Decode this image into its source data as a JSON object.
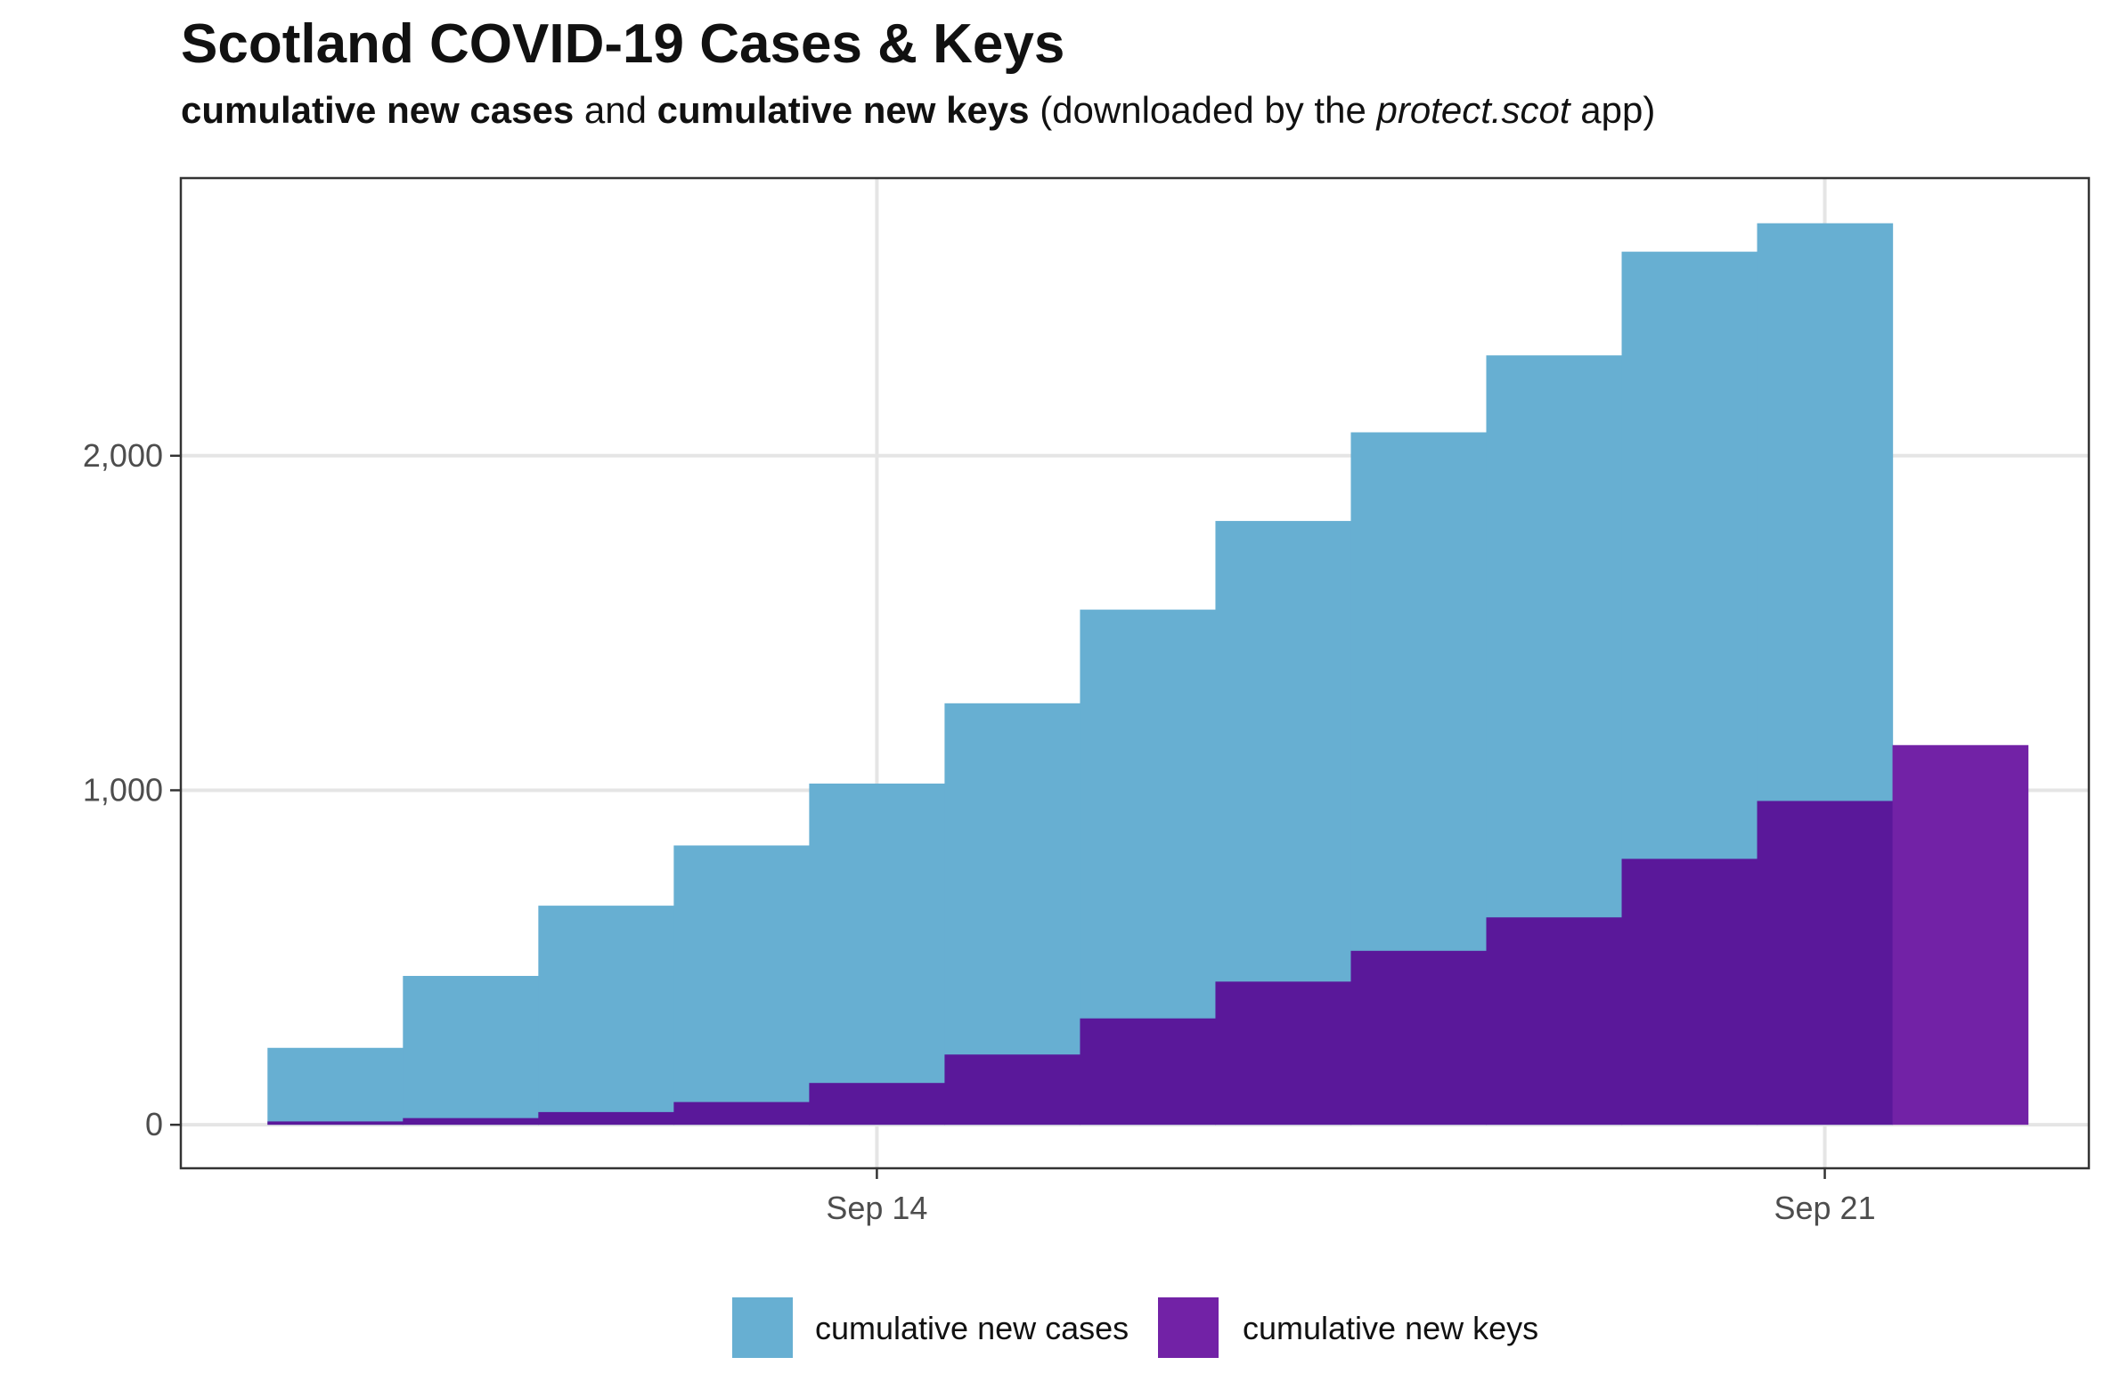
{
  "colors": {
    "cases": "#67afd2",
    "keys": "#5a189a",
    "keys_extra": "#7222a6",
    "grid": "#e5e5e5",
    "axis_text": "#4d4d4d",
    "panel_border": "#333333"
  },
  "chart_data": {
    "type": "area",
    "title": "Scotland COVID-19 Cases & Keys",
    "subtitle": {
      "part1": "cumulative new cases",
      "part2": " and ",
      "part3": "cumulative new keys",
      "part4": " (downloaded by the ",
      "part5": "protect.scot",
      "part6": "  app)"
    },
    "xlabel": "",
    "ylabel": "",
    "x_ticks": [
      {
        "label": "Sep 14",
        "value": 14.0
      },
      {
        "label": "Sep 21",
        "value": 21.0
      }
    ],
    "y_ticks": [
      {
        "label": "0",
        "value": 0
      },
      {
        "label": "1,000",
        "value": 1000
      },
      {
        "label": "2,000",
        "value": 2000
      }
    ],
    "xlim": [
      8.86,
      22.95
    ],
    "ylim": [
      -130,
      2830
    ],
    "grid": true,
    "legend_position": "bottom",
    "x_unit": "day of September",
    "series": [
      {
        "name": "cumulative new cases",
        "color_key": "cases",
        "steps": [
          {
            "start": 9.5,
            "end": 10.5,
            "value": 230
          },
          {
            "start": 10.5,
            "end": 11.5,
            "value": 445
          },
          {
            "start": 11.5,
            "end": 12.5,
            "value": 655
          },
          {
            "start": 12.5,
            "end": 13.5,
            "value": 835
          },
          {
            "start": 13.5,
            "end": 14.5,
            "value": 1020
          },
          {
            "start": 14.5,
            "end": 15.5,
            "value": 1260
          },
          {
            "start": 15.5,
            "end": 16.5,
            "value": 1540
          },
          {
            "start": 16.5,
            "end": 17.5,
            "value": 1805
          },
          {
            "start": 17.5,
            "end": 18.5,
            "value": 2070
          },
          {
            "start": 18.5,
            "end": 19.5,
            "value": 2300
          },
          {
            "start": 19.5,
            "end": 20.5,
            "value": 2610
          },
          {
            "start": 20.5,
            "end": 21.5,
            "value": 2695
          }
        ]
      },
      {
        "name": "cumulative new keys",
        "color_key": "keys",
        "steps": [
          {
            "start": 9.5,
            "end": 10.5,
            "value": 10
          },
          {
            "start": 10.5,
            "end": 11.5,
            "value": 20
          },
          {
            "start": 11.5,
            "end": 12.5,
            "value": 38
          },
          {
            "start": 12.5,
            "end": 13.5,
            "value": 68
          },
          {
            "start": 13.5,
            "end": 14.5,
            "value": 125
          },
          {
            "start": 14.5,
            "end": 15.5,
            "value": 210
          },
          {
            "start": 15.5,
            "end": 16.5,
            "value": 318
          },
          {
            "start": 16.5,
            "end": 17.5,
            "value": 428
          },
          {
            "start": 17.5,
            "end": 18.5,
            "value": 520
          },
          {
            "start": 18.5,
            "end": 19.5,
            "value": 620
          },
          {
            "start": 19.5,
            "end": 20.5,
            "value": 795
          },
          {
            "start": 20.5,
            "end": 21.5,
            "value": 968
          },
          {
            "start": 21.5,
            "end": 22.5,
            "value": 1135
          }
        ]
      }
    ],
    "legend": [
      {
        "label": "cumulative new cases",
        "color_key": "cases"
      },
      {
        "label": "cumulative new keys",
        "color_key": "keys_extra"
      }
    ]
  }
}
